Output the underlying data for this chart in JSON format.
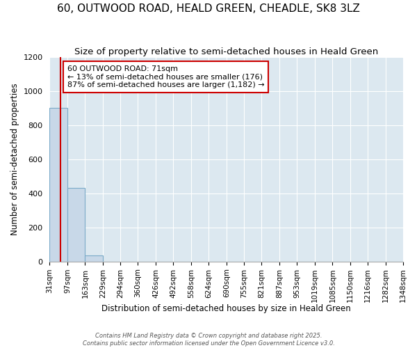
{
  "title": "60, OUTWOOD ROAD, HEALD GREEN, CHEADLE, SK8 3LZ",
  "subtitle": "Size of property relative to semi-detached houses in Heald Green",
  "xlabel": "Distribution of semi-detached houses by size in Heald Green",
  "ylabel": "Number of semi-detached properties",
  "bin_labels": [
    "31sqm",
    "97sqm",
    "163sqm",
    "229sqm",
    "294sqm",
    "360sqm",
    "426sqm",
    "492sqm",
    "558sqm",
    "624sqm",
    "690sqm",
    "755sqm",
    "821sqm",
    "887sqm",
    "953sqm",
    "1019sqm",
    "1085sqm",
    "1150sqm",
    "1216sqm",
    "1282sqm",
    "1348sqm"
  ],
  "bar_heights": [
    900,
    430,
    35,
    0,
    0,
    0,
    0,
    0,
    0,
    0,
    0,
    0,
    0,
    0,
    0,
    0,
    0,
    0,
    0,
    0
  ],
  "bar_color": "#c8d8e8",
  "bar_edge_color": "#7aaac8",
  "property_line_x": 71,
  "bin_edges": [
    31,
    97,
    163,
    229,
    294,
    360,
    426,
    492,
    558,
    624,
    690,
    755,
    821,
    887,
    953,
    1019,
    1085,
    1150,
    1216,
    1282,
    1348
  ],
  "annotation_title": "60 OUTWOOD ROAD: 71sqm",
  "annotation_line1": "← 13% of semi-detached houses are smaller (176)",
  "annotation_line2": "87% of semi-detached houses are larger (1,182) →",
  "annotation_box_color": "#cc0000",
  "ylim": [
    0,
    1200
  ],
  "yticks": [
    0,
    200,
    400,
    600,
    800,
    1000,
    1200
  ],
  "plot_bg_color": "#dce8f0",
  "figure_bg_color": "#ffffff",
  "grid_color": "#ffffff",
  "title_fontsize": 11,
  "subtitle_fontsize": 9.5,
  "footer": "Contains HM Land Registry data © Crown copyright and database right 2025.\nContains public sector information licensed under the Open Government Licence v3.0."
}
